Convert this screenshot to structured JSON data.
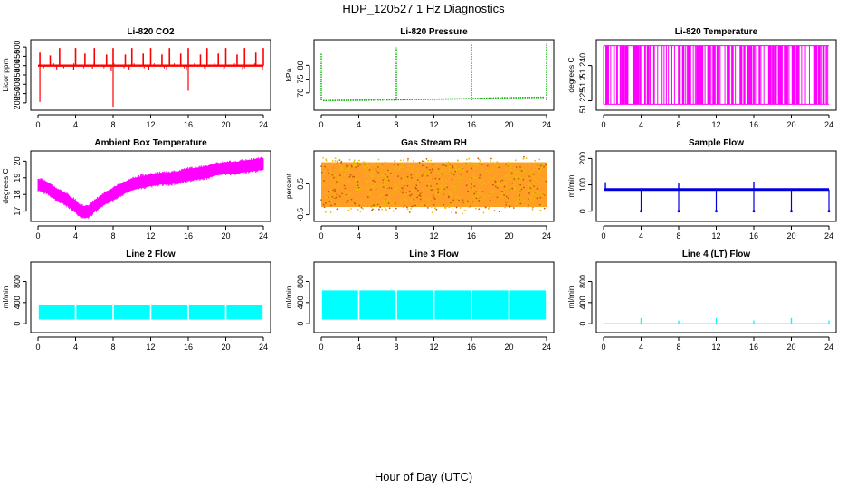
{
  "figure": {
    "title": "HDP_120527  1 Hz Diagnostics",
    "xlabel": "Hour of Day (UTC)"
  },
  "chart_data": [
    {
      "type": "line",
      "title": "Li-820 CO2",
      "ylabel": "Licor ppm",
      "color": "#ff0000",
      "xlim": [
        0,
        24
      ],
      "ylim": [
        180,
        520
      ],
      "xticks": [
        "0",
        "4",
        "8",
        "12",
        "16",
        "20",
        "24"
      ],
      "yticks": [
        200,
        250,
        300,
        350,
        400,
        450,
        500
      ],
      "baseline": 400,
      "spikes_up": [
        [
          0.2,
          470
        ],
        [
          1.3,
          455
        ],
        [
          2.3,
          495
        ],
        [
          4,
          495
        ],
        [
          5,
          465
        ],
        [
          6,
          495
        ],
        [
          7.3,
          460
        ],
        [
          8,
          495
        ],
        [
          9.3,
          460
        ],
        [
          10,
          495
        ],
        [
          11.2,
          465
        ],
        [
          12,
          495
        ],
        [
          13.2,
          460
        ],
        [
          14,
          495
        ],
        [
          15.2,
          465
        ],
        [
          16,
          495
        ],
        [
          17.3,
          460
        ],
        [
          18,
          495
        ],
        [
          19.2,
          465
        ],
        [
          20,
          495
        ],
        [
          21.2,
          460
        ],
        [
          22,
          495
        ],
        [
          23.2,
          470
        ],
        [
          24,
          495
        ]
      ],
      "spikes_down": [
        [
          0.2,
          205
        ],
        [
          2,
          380
        ],
        [
          3.8,
          375
        ],
        [
          5.8,
          385
        ],
        [
          7.8,
          370
        ],
        [
          8,
          180
        ],
        [
          9.7,
          380
        ],
        [
          11.8,
          375
        ],
        [
          13.7,
          380
        ],
        [
          15.8,
          375
        ],
        [
          16,
          265
        ],
        [
          17.8,
          380
        ],
        [
          19.8,
          375
        ],
        [
          21.8,
          380
        ],
        [
          23.9,
          375
        ]
      ]
    },
    {
      "type": "line",
      "title": "Li-820 Pressure",
      "ylabel": "kPa",
      "color": "#00b000",
      "xlim": [
        0,
        24
      ],
      "ylim": [
        65,
        88
      ],
      "xticks": [
        "0",
        "4",
        "8",
        "12",
        "16",
        "20",
        "24"
      ],
      "yticks": [
        70,
        75,
        80
      ],
      "segments": [
        [
          0.2,
          67.2
        ],
        [
          8,
          67.5
        ],
        [
          16,
          67.9
        ],
        [
          19,
          68.2
        ],
        [
          23.8,
          68.4
        ]
      ],
      "spikes": [
        [
          0,
          84.5
        ],
        [
          8,
          86.5
        ],
        [
          16,
          87.5
        ],
        [
          24,
          88
        ]
      ]
    },
    {
      "type": "line",
      "title": "Li-820 Temperature",
      "ylabel": "degrees C",
      "color": "#ff00ff",
      "xlim": [
        0,
        24
      ],
      "ylim": [
        51.2225,
        51.2495
      ],
      "xticks": [
        "0",
        "4",
        "8",
        "12",
        "16",
        "20",
        "24"
      ],
      "yticks": [
        51.225,
        51.24
      ],
      "ytick_labels": [
        "51.225",
        "51.240"
      ],
      "extra_tick_label": "51.2",
      "low_level": 51.2235,
      "high_level": 51.2485
    },
    {
      "type": "line",
      "title": "Ambient Box Temperature",
      "ylabel": "degrees C",
      "color": "#ff00ff",
      "xlim": [
        0,
        24
      ],
      "ylim": [
        16.6,
        20.4
      ],
      "xticks": [
        "0",
        "4",
        "8",
        "12",
        "16",
        "20",
        "24"
      ],
      "yticks": [
        17,
        18,
        19,
        20
      ],
      "x": [
        0,
        1,
        2,
        3,
        4,
        4.5,
        5,
        5.5,
        6,
        7,
        8,
        9,
        10,
        11,
        12,
        13,
        14,
        15,
        16,
        17,
        18,
        19,
        20,
        21,
        22,
        23,
        24
      ],
      "mid": [
        18.6,
        18.4,
        18.0,
        17.7,
        17.3,
        17.0,
        16.95,
        17.0,
        17.3,
        17.7,
        18.05,
        18.35,
        18.6,
        18.75,
        18.85,
        18.95,
        18.95,
        19.05,
        19.2,
        19.25,
        19.35,
        19.5,
        19.6,
        19.6,
        19.7,
        19.75,
        19.85
      ],
      "half_width": 0.35
    },
    {
      "type": "scatter",
      "title": "Gas Stream RH",
      "ylabel": "percent",
      "color": "#e8a000",
      "xlim": [
        0,
        24
      ],
      "ylim": [
        -0.6,
        1.45
      ],
      "xticks": [
        "0",
        "4",
        "8",
        "12",
        "16",
        "20",
        "24"
      ],
      "yticks": [
        -0.5,
        0.5
      ],
      "center": 0.45,
      "band": 1.55
    },
    {
      "type": "line",
      "title": "Sample Flow",
      "ylabel": "ml/min",
      "color": "#0000dd",
      "xlim": [
        0,
        24
      ],
      "ylim": [
        -25,
        215
      ],
      "xticks": [
        "0",
        "4",
        "8",
        "12",
        "16",
        "20",
        "24"
      ],
      "yticks": [
        0,
        100,
        200
      ],
      "baseline": 82,
      "dips": [
        4,
        8,
        12,
        16,
        20,
        24
      ],
      "spikes": [
        [
          0.2,
          110
        ],
        [
          8,
          105
        ],
        [
          16,
          112
        ]
      ]
    },
    {
      "type": "line",
      "title": "Line 2 Flow",
      "ylabel": "ml/min",
      "color": "#00ffff",
      "xlim": [
        0,
        24
      ],
      "ylim": [
        -100,
        1100
      ],
      "xticks": [
        "0",
        "4",
        "8",
        "12",
        "16",
        "20",
        "24"
      ],
      "yticks": [
        0,
        400,
        800
      ],
      "band_low": 80,
      "band_high": 350,
      "gaps": [
        4,
        8,
        12,
        16,
        20
      ]
    },
    {
      "type": "line",
      "title": "Line 3 Flow",
      "ylabel": "ml/min",
      "color": "#00ffff",
      "xlim": [
        0,
        24
      ],
      "ylim": [
        -100,
        1100
      ],
      "xticks": [
        "0",
        "4",
        "8",
        "12",
        "16",
        "20",
        "24"
      ],
      "yticks": [
        0,
        400,
        800
      ],
      "band_low": 80,
      "band_high": 630,
      "gaps": [
        4,
        8,
        12,
        16,
        20
      ]
    },
    {
      "type": "line",
      "title": "Line 4 (LT) Flow",
      "ylabel": "ml/min",
      "color": "#00ffff",
      "xlim": [
        0,
        24
      ],
      "ylim": [
        -100,
        1100
      ],
      "xticks": [
        "0",
        "4",
        "8",
        "12",
        "16",
        "20",
        "24"
      ],
      "yticks": [
        0,
        400,
        800
      ],
      "baseline": 0,
      "spikes": [
        [
          4,
          110
        ],
        [
          8,
          60
        ],
        [
          12,
          110
        ],
        [
          16,
          60
        ],
        [
          20,
          110
        ],
        [
          24,
          60
        ]
      ]
    }
  ]
}
